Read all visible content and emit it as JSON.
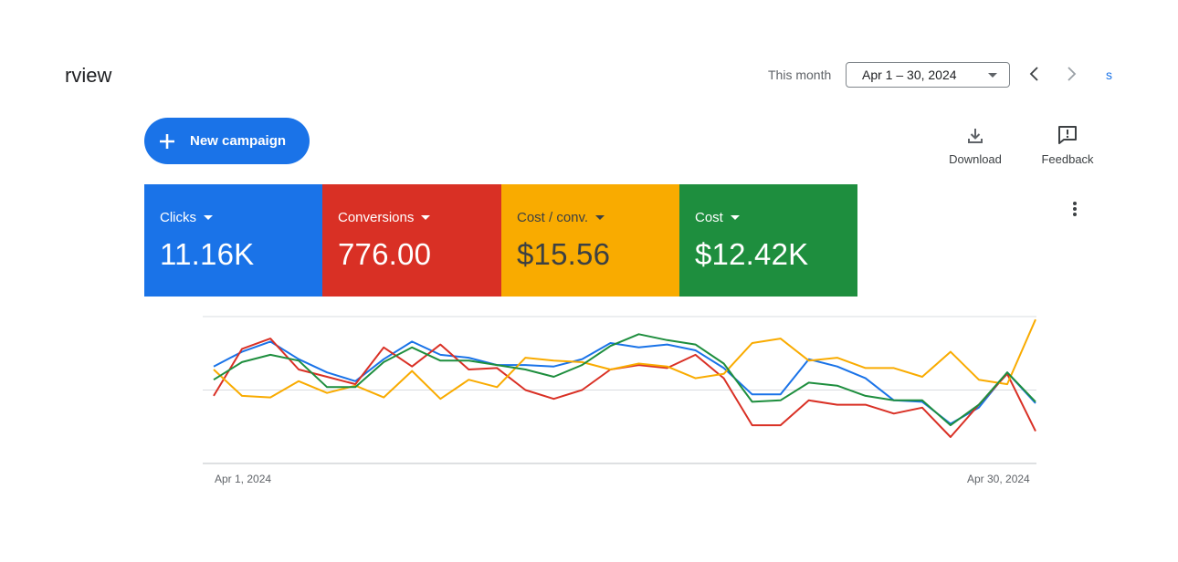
{
  "header": {
    "title": "rview",
    "period_label": "This month",
    "date_range": "Apr 1 – 30, 2024",
    "cut_link": "s"
  },
  "actions": {
    "new_campaign_label": "New campaign",
    "download_label": "Download",
    "feedback_label": "Feedback"
  },
  "scorecards": [
    {
      "metric": "Clicks",
      "value": "11.16K",
      "color": "#1a73e8"
    },
    {
      "metric": "Conversions",
      "value": "776.00",
      "color": "#d93025"
    },
    {
      "metric": "Cost / conv.",
      "value": "$15.56",
      "color": "#f9ab00"
    },
    {
      "metric": "Cost",
      "value": "$12.42K",
      "color": "#1e8e3e"
    }
  ],
  "icons": [
    "plus-icon",
    "download-icon",
    "feedback-icon",
    "more-vert-icon",
    "chevron-left-icon",
    "chevron-right-icon",
    "dropdown-caret-icon"
  ],
  "chart_data": {
    "type": "line",
    "x": [
      "Apr 1",
      "Apr 2",
      "Apr 3",
      "Apr 4",
      "Apr 5",
      "Apr 6",
      "Apr 7",
      "Apr 8",
      "Apr 9",
      "Apr 10",
      "Apr 11",
      "Apr 12",
      "Apr 13",
      "Apr 14",
      "Apr 15",
      "Apr 16",
      "Apr 17",
      "Apr 18",
      "Apr 19",
      "Apr 20",
      "Apr 21",
      "Apr 22",
      "Apr 23",
      "Apr 24",
      "Apr 25",
      "Apr 26",
      "Apr 27",
      "Apr 28",
      "Apr 29",
      "Apr 30"
    ],
    "x_tick_labels": [
      "Apr 1, 2024",
      "Apr 30, 2024"
    ],
    "ylim": [
      0,
      1
    ],
    "grid": true,
    "series": [
      {
        "metric": "Clicks",
        "color": "#1a73e8",
        "values": [
          0.66,
          0.76,
          0.83,
          0.71,
          0.62,
          0.56,
          0.71,
          0.83,
          0.74,
          0.72,
          0.67,
          0.67,
          0.66,
          0.71,
          0.82,
          0.79,
          0.81,
          0.77,
          0.65,
          0.47,
          0.47,
          0.71,
          0.66,
          0.58,
          0.43,
          0.42,
          0.27,
          0.38,
          0.62,
          0.41
        ]
      },
      {
        "metric": "Conversions",
        "color": "#d93025",
        "values": [
          0.46,
          0.78,
          0.85,
          0.64,
          0.59,
          0.54,
          0.79,
          0.66,
          0.81,
          0.64,
          0.65,
          0.5,
          0.44,
          0.5,
          0.64,
          0.67,
          0.65,
          0.74,
          0.58,
          0.26,
          0.26,
          0.43,
          0.4,
          0.4,
          0.34,
          0.38,
          0.18,
          0.4,
          0.61,
          0.22
        ]
      },
      {
        "metric": "Cost / conv.",
        "color": "#f9ab00",
        "values": [
          0.64,
          0.46,
          0.45,
          0.56,
          0.48,
          0.53,
          0.45,
          0.63,
          0.44,
          0.57,
          0.52,
          0.72,
          0.7,
          0.69,
          0.64,
          0.68,
          0.66,
          0.58,
          0.61,
          0.82,
          0.85,
          0.7,
          0.72,
          0.65,
          0.65,
          0.59,
          0.76,
          0.57,
          0.54,
          0.98
        ]
      },
      {
        "metric": "Cost",
        "color": "#1e8e3e",
        "values": [
          0.57,
          0.69,
          0.74,
          0.7,
          0.52,
          0.52,
          0.69,
          0.79,
          0.7,
          0.7,
          0.67,
          0.64,
          0.59,
          0.67,
          0.8,
          0.88,
          0.84,
          0.81,
          0.68,
          0.42,
          0.43,
          0.55,
          0.53,
          0.46,
          0.43,
          0.43,
          0.26,
          0.4,
          0.62,
          0.42
        ]
      }
    ]
  }
}
